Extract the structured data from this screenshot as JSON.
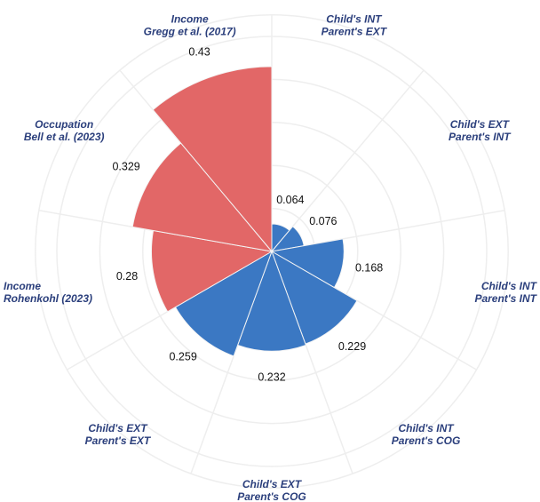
{
  "chart_data": {
    "type": "polar-bar",
    "categories": [
      [
        "Child's INT",
        "Parent's EXT"
      ],
      [
        "Child's EXT",
        "Parent's INT"
      ],
      [
        "Child's INT",
        "Parent's INT"
      ],
      [
        "Child's INT",
        "Parent's COG"
      ],
      [
        "Child's EXT",
        "Parent's COG"
      ],
      [
        "Child's EXT",
        "Parent's EXT"
      ],
      [
        "Income",
        "Rohenkohl (2023)"
      ],
      [
        "Occupation",
        "Bell et al. (2023)"
      ],
      [
        "Income",
        "Gregg et al. (2017)"
      ]
    ],
    "values": [
      0.064,
      0.076,
      0.168,
      0.229,
      0.232,
      0.259,
      0.28,
      0.329,
      0.43
    ],
    "colors": [
      "#3b78c3",
      "#3b78c3",
      "#3b78c3",
      "#3b78c3",
      "#3b78c3",
      "#3b78c3",
      "#e26767",
      "#e26767",
      "#e26767"
    ],
    "rlim": [
      0,
      0.5
    ]
  }
}
